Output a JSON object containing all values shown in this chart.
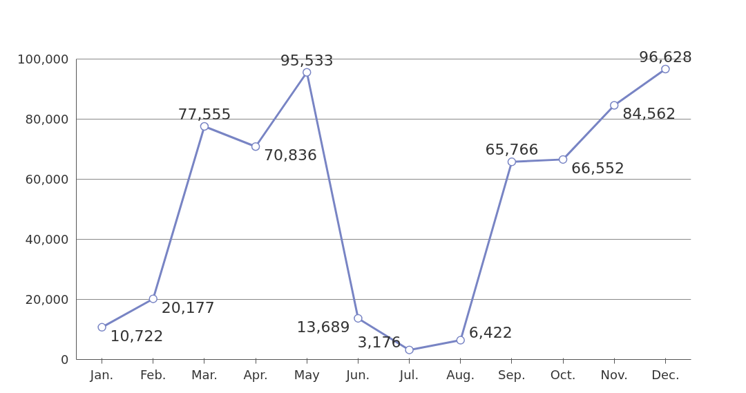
{
  "chart_data": {
    "type": "line",
    "categories": [
      "Jan.",
      "Feb.",
      "Mar.",
      "Apr.",
      "May",
      "Jun.",
      "Jul.",
      "Aug.",
      "Sep.",
      "Oct.",
      "Nov.",
      "Dec."
    ],
    "series": [
      {
        "color": "#7884c4",
        "values": [
          10722,
          20177,
          77555,
          70836,
          95533,
          13689,
          3176,
          6422,
          65766,
          66552,
          84562,
          96628
        ],
        "value_labels": [
          "10,722",
          "20,177",
          "77,555",
          "70,836",
          "95,533",
          "13,689",
          "3,176",
          "6,422",
          "65,766",
          "66,552",
          "84,562",
          "96,628"
        ]
      }
    ],
    "ylim": [
      0,
      100000
    ],
    "yticks": [
      {
        "value": 0,
        "label": "0"
      },
      {
        "value": 20000,
        "label": "20,000"
      },
      {
        "value": 40000,
        "label": "40,000"
      },
      {
        "value": 60000,
        "label": "60,000"
      },
      {
        "value": 80000,
        "label": "80,000"
      },
      {
        "value": 100000,
        "label": "100,000"
      }
    ],
    "grid": "y",
    "marker": "circle"
  }
}
